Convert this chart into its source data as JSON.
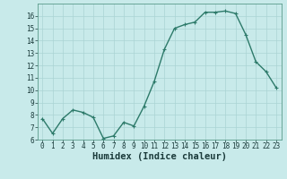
{
  "x": [
    0,
    1,
    2,
    3,
    4,
    5,
    6,
    7,
    8,
    9,
    10,
    11,
    12,
    13,
    14,
    15,
    16,
    17,
    18,
    19,
    20,
    21,
    22,
    23
  ],
  "y": [
    7.7,
    6.5,
    7.7,
    8.4,
    8.2,
    7.8,
    6.1,
    6.3,
    7.4,
    7.1,
    8.7,
    10.7,
    13.3,
    15.0,
    15.3,
    15.5,
    16.3,
    16.3,
    16.4,
    16.2,
    14.5,
    12.3,
    11.5,
    10.2
  ],
  "xlabel": "Humidex (Indice chaleur)",
  "ylim": [
    6,
    17
  ],
  "xlim": [
    -0.5,
    23.5
  ],
  "yticks": [
    6,
    7,
    8,
    9,
    10,
    11,
    12,
    13,
    14,
    15,
    16
  ],
  "xticks": [
    0,
    1,
    2,
    3,
    4,
    5,
    6,
    7,
    8,
    9,
    10,
    11,
    12,
    13,
    14,
    15,
    16,
    17,
    18,
    19,
    20,
    21,
    22,
    23
  ],
  "xtick_labels": [
    "0",
    "1",
    "2",
    "3",
    "4",
    "5",
    "6",
    "7",
    "8",
    "9",
    "10",
    "11",
    "12",
    "13",
    "14",
    "15",
    "16",
    "17",
    "18",
    "19",
    "20",
    "21",
    "22",
    "23"
  ],
  "line_color": "#2d7a6a",
  "marker": "+",
  "marker_color": "#2d7a6a",
  "bg_color": "#c8eaea",
  "grid_color": "#aad4d4",
  "xlabel_fontsize": 7.5,
  "tick_fontsize": 5.5,
  "line_width": 1.0,
  "marker_size": 3.5
}
